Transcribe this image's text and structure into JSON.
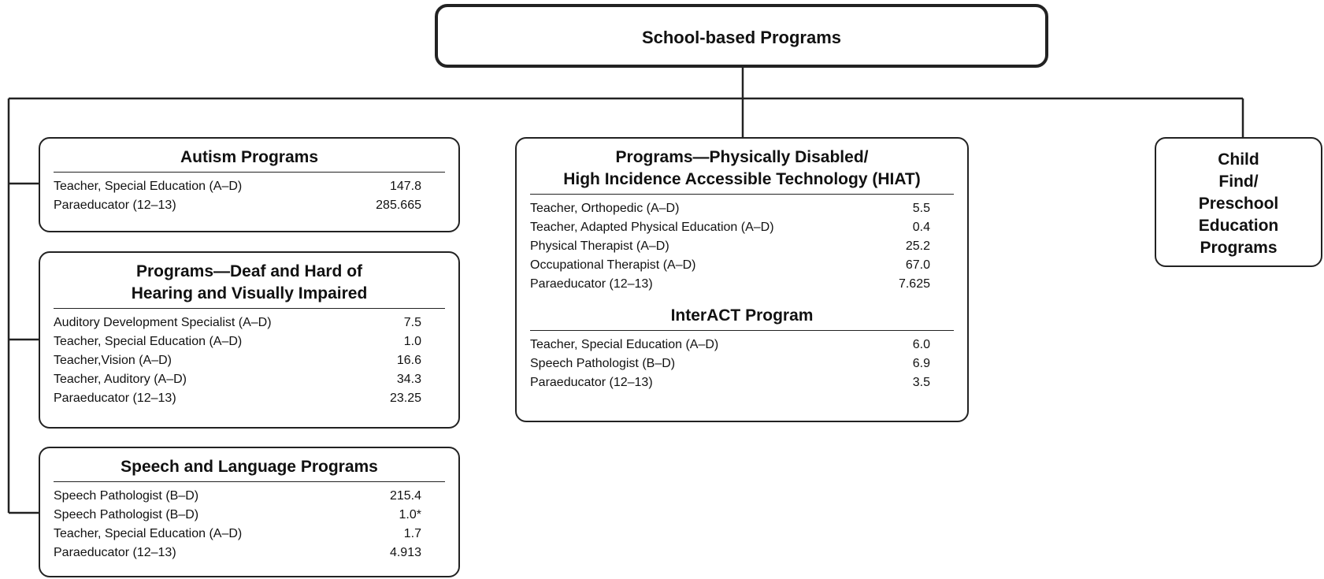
{
  "root": {
    "title": "School-based Programs"
  },
  "programs": [
    {
      "sections": [
        {
          "title_lines": [
            "Autism Programs"
          ],
          "rows": [
            [
              "Teacher, Special Education (A–D)",
              "147.8"
            ],
            [
              "Paraeducator (12–13)",
              "285.665"
            ]
          ]
        }
      ]
    },
    {
      "sections": [
        {
          "title_lines": [
            "Programs—Deaf and Hard of",
            "Hearing and Visually Impaired"
          ],
          "rows": [
            [
              "Auditory Development Specialist (A–D)",
              "7.5"
            ],
            [
              "Teacher, Special Education (A–D)",
              "1.0"
            ],
            [
              "Teacher,Vision (A–D)",
              "16.6"
            ],
            [
              "Teacher, Auditory (A–D)",
              "34.3"
            ],
            [
              "Paraeducator (12–13)",
              "23.25"
            ]
          ]
        }
      ]
    },
    {
      "sections": [
        {
          "title_lines": [
            "Speech and Language Programs"
          ],
          "rows": [
            [
              "Speech Pathologist (B–D)",
              "215.4"
            ],
            [
              "Speech Pathologist (B–D)",
              "1.0*"
            ],
            [
              "Teacher, Special Education (A–D)",
              "1.7"
            ],
            [
              "Paraeducator (12–13)",
              "4.913"
            ]
          ]
        }
      ]
    },
    {
      "sections": [
        {
          "title_lines": [
            "Programs—Physically Disabled/",
            "High Incidence Accessible Technology (HIAT)"
          ],
          "rows": [
            [
              "Teacher, Orthopedic (A–D)",
              "5.5"
            ],
            [
              "Teacher, Adapted Physical Education (A–D)",
              "0.4"
            ],
            [
              "Physical Therapist (A–D)",
              "25.2"
            ],
            [
              "Occupational Therapist (A–D)",
              "67.0"
            ],
            [
              "Paraeducator (12–13)",
              "7.625"
            ]
          ]
        },
        {
          "title_lines": [
            "InterACT Program"
          ],
          "rows": [
            [
              "Teacher, Special Education (A–D)",
              "6.0"
            ],
            [
              "Speech Pathologist (B–D)",
              "6.9"
            ],
            [
              "Paraeducator (12–13)",
              "3.5"
            ]
          ]
        }
      ]
    },
    {
      "sections": [
        {
          "title_lines": [
            "Child",
            "Find/",
            "Preschool",
            "Education",
            "Programs"
          ],
          "rows": []
        }
      ]
    }
  ]
}
